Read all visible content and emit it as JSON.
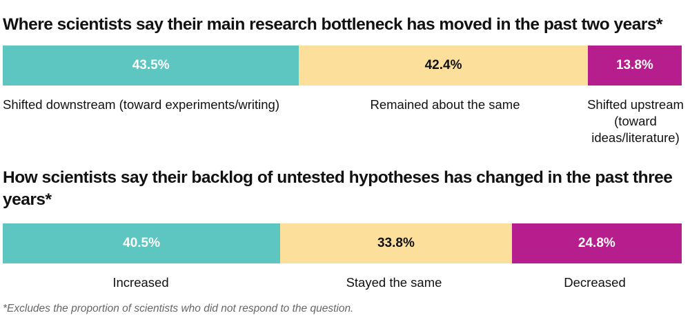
{
  "chart_data": [
    {
      "type": "bar",
      "stacked": true,
      "orientation": "horizontal",
      "title": "Where scientists say their main research bottleneck has moved in the past two years*",
      "categories": [
        "Shifted downstream (toward experiments/writing)",
        "Remained about the same",
        "Shifted upstream (toward ideas/literature)"
      ],
      "values": [
        43.5,
        42.4,
        13.8
      ],
      "labels": [
        "43.5%",
        "42.4%",
        "13.8%"
      ],
      "colors": [
        "#5ec6c0",
        "#fddf9c",
        "#b51e8c"
      ],
      "label_colors": [
        "#ffffff",
        "#111111",
        "#ffffff"
      ]
    },
    {
      "type": "bar",
      "stacked": true,
      "orientation": "horizontal",
      "title": "How scientists say their backlog of untested hypotheses has changed in the past three years*",
      "categories": [
        "Increased",
        "Stayed the same",
        "Decreased"
      ],
      "values": [
        40.5,
        33.8,
        24.8
      ],
      "labels": [
        "40.5%",
        "33.8%",
        "24.8%"
      ],
      "colors": [
        "#5ec6c0",
        "#fddf9c",
        "#b51e8c"
      ],
      "label_colors": [
        "#ffffff",
        "#111111",
        "#ffffff"
      ]
    }
  ],
  "footnote": "*Excludes the proportion of scientists who did not respond to the question."
}
